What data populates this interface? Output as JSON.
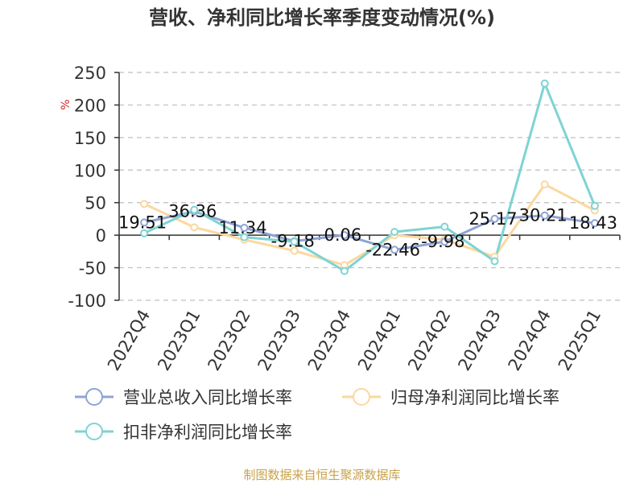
{
  "title": "营收、净利同比增长率季度变动情况(%)",
  "source": "制图数据来自恒生聚源数据库",
  "chart_data": {
    "type": "line",
    "title": "营收、净利同比增长率季度变动情况(%)",
    "ylabel": "%",
    "ylim": [
      -100,
      250
    ],
    "yticks": [
      -100,
      -50,
      0,
      50,
      100,
      150,
      200,
      250
    ],
    "grid": true,
    "legend_position": "bottom",
    "categories": [
      "2022Q4",
      "2023Q1",
      "2023Q2",
      "2023Q3",
      "2023Q4",
      "2024Q1",
      "2024Q2",
      "2024Q3",
      "2024Q4",
      "2025Q1"
    ],
    "series": [
      {
        "name": "营业总收入同比增长率",
        "color": "#8fa3d4",
        "values": [
          19.51,
          36.36,
          11.34,
          -9.18,
          0.06,
          -22.46,
          -9.98,
          25.17,
          30.21,
          18.43
        ],
        "labels": [
          "19.51",
          "36.36",
          "11.34",
          "-9.18",
          "0.06",
          "-22.46",
          "-9.98",
          "25.17",
          "30.21",
          "18.43"
        ]
      },
      {
        "name": "归母净利润同比增长率",
        "color": "#fbd89f",
        "values": [
          48,
          12,
          -7,
          -24,
          -46,
          0,
          -7,
          -33,
          78,
          38
        ]
      },
      {
        "name": "扣非净利润同比增长率",
        "color": "#7fd3d3",
        "values": [
          3,
          39,
          -3,
          -10,
          -55,
          5,
          13,
          -40,
          233,
          45
        ]
      }
    ]
  }
}
